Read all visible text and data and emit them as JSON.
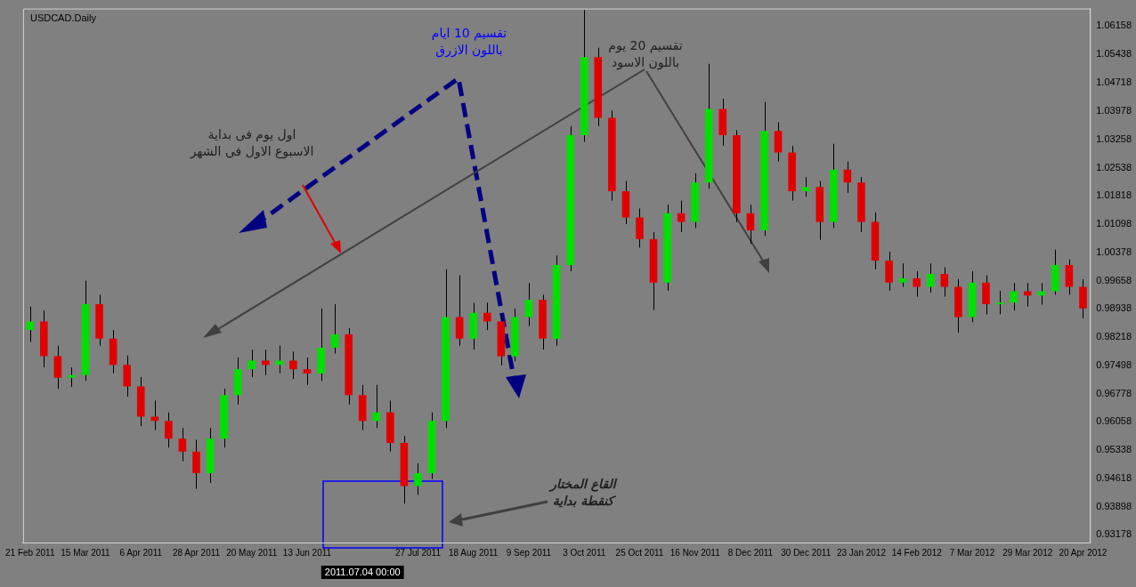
{
  "chart_data": {
    "type": "candlestick",
    "title": "USDCAD.Daily",
    "categories": [
      "21 Feb 2011",
      null,
      null,
      null,
      "15 Mar 2011",
      null,
      null,
      null,
      "6 Apr 2011",
      null,
      null,
      null,
      "28 Apr 2011",
      null,
      null,
      null,
      "20 May 2011",
      null,
      null,
      null,
      "13 Jun 2011",
      null,
      null,
      null,
      null,
      null,
      null,
      null,
      "27 Jul 2011",
      null,
      null,
      null,
      "18 Aug 2011",
      null,
      null,
      null,
      "9 Sep 2011",
      null,
      null,
      null,
      "3 Oct 2011",
      null,
      null,
      null,
      "25 Oct 2011",
      null,
      null,
      null,
      "16 Nov 2011",
      null,
      null,
      null,
      "8 Dec 2011",
      null,
      null,
      null,
      "30 Dec 2011",
      null,
      null,
      null,
      "23 Jan 2012",
      null,
      null,
      null,
      "14 Feb 2012",
      null,
      null,
      null,
      "7 Mar 2012",
      null,
      null,
      null,
      "29 Mar 2012",
      null,
      null,
      null,
      "20 Apr 2012"
    ],
    "ohlc": [
      [
        0.984,
        0.99,
        0.981,
        0.9862
      ],
      [
        0.9862,
        0.989,
        0.9745,
        0.9773
      ],
      [
        0.9773,
        0.98,
        0.969,
        0.9718
      ],
      [
        0.9718,
        0.9745,
        0.9695,
        0.9725
      ],
      [
        0.9725,
        0.9966,
        0.971,
        0.9906
      ],
      [
        0.9906,
        0.993,
        0.98,
        0.9818
      ],
      [
        0.9818,
        0.984,
        0.973,
        0.9751
      ],
      [
        0.9751,
        0.9775,
        0.967,
        0.9696
      ],
      [
        0.9696,
        0.972,
        0.9595,
        0.9619
      ],
      [
        0.9619,
        0.966,
        0.9585,
        0.9608
      ],
      [
        0.9608,
        0.963,
        0.954,
        0.9563
      ],
      [
        0.9563,
        0.959,
        0.9505,
        0.953
      ],
      [
        0.953,
        0.956,
        0.9435,
        0.9475
      ],
      [
        0.9475,
        0.959,
        0.945,
        0.9563
      ],
      [
        0.9563,
        0.969,
        0.954,
        0.9674
      ],
      [
        0.9674,
        0.977,
        0.965,
        0.974
      ],
      [
        0.974,
        0.979,
        0.972,
        0.9762
      ],
      [
        0.9762,
        0.979,
        0.9725,
        0.9751
      ],
      [
        0.9751,
        0.98,
        0.973,
        0.9762
      ],
      [
        0.9762,
        0.9785,
        0.9715,
        0.974
      ],
      [
        0.974,
        0.977,
        0.97,
        0.9729
      ],
      [
        0.9729,
        0.9895,
        0.971,
        0.9795
      ],
      [
        0.9795,
        0.9906,
        0.978,
        0.9829
      ],
      [
        0.9829,
        0.9845,
        0.965,
        0.9674
      ],
      [
        0.9674,
        0.97,
        0.9585,
        0.9608
      ],
      [
        0.9608,
        0.97,
        0.959,
        0.963
      ],
      [
        0.963,
        0.966,
        0.953,
        0.9552
      ],
      [
        0.9552,
        0.957,
        0.9397,
        0.9442
      ],
      [
        0.9442,
        0.95,
        0.942,
        0.9475
      ],
      [
        0.9475,
        0.963,
        0.946,
        0.9608
      ],
      [
        0.9608,
        0.9995,
        0.959,
        0.9873
      ],
      [
        0.9873,
        0.998,
        0.98,
        0.9818
      ],
      [
        0.9818,
        0.991,
        0.979,
        0.9884
      ],
      [
        0.9884,
        0.991,
        0.984,
        0.9862
      ],
      [
        0.9862,
        0.988,
        0.975,
        0.9773
      ],
      [
        0.9773,
        0.9895,
        0.976,
        0.9873
      ],
      [
        0.9873,
        0.996,
        0.985,
        0.9917
      ],
      [
        0.9917,
        0.993,
        0.979,
        0.9818
      ],
      [
        0.9818,
        1.003,
        0.98,
        1.0006
      ],
      [
        1.0006,
        1.036,
        0.999,
        1.0337
      ],
      [
        1.0337,
        1.0656,
        1.032,
        1.0536
      ],
      [
        1.0536,
        1.056,
        1.036,
        1.0381
      ],
      [
        1.0381,
        1.04,
        1.017,
        1.0194
      ],
      [
        1.0194,
        1.022,
        1.011,
        1.0127
      ],
      [
        1.0127,
        1.015,
        1.005,
        1.0072
      ],
      [
        1.0072,
        1.009,
        0.9891,
        0.9961
      ],
      [
        0.9961,
        1.016,
        0.994,
        1.0138
      ],
      [
        1.0138,
        1.017,
        1.009,
        1.0116
      ],
      [
        1.0116,
        1.024,
        1.01,
        1.0216
      ],
      [
        1.0216,
        1.0519,
        1.02,
        1.0404
      ],
      [
        1.0404,
        1.043,
        1.031,
        1.0337
      ],
      [
        1.0337,
        1.035,
        1.0115,
        1.0138
      ],
      [
        1.0138,
        1.016,
        1.006,
        1.0094
      ],
      [
        1.0094,
        1.0422,
        1.008,
        1.0348
      ],
      [
        1.0348,
        1.037,
        1.027,
        1.0293
      ],
      [
        1.0293,
        1.031,
        1.017,
        1.0194
      ],
      [
        1.0194,
        1.023,
        1.018,
        1.0205
      ],
      [
        1.0205,
        1.022,
        1.007,
        1.0116
      ],
      [
        1.0116,
        1.0315,
        1.01,
        1.0249
      ],
      [
        1.0249,
        1.027,
        1.019,
        1.0216
      ],
      [
        1.0216,
        1.023,
        1.009,
        1.0116
      ],
      [
        1.0116,
        1.014,
        0.9995,
        1.0017
      ],
      [
        1.0017,
        1.004,
        0.994,
        0.9961
      ],
      [
        0.9961,
        1.001,
        0.995,
        0.9972
      ],
      [
        0.9972,
        0.999,
        0.9925,
        0.995
      ],
      [
        0.995,
        1.001,
        0.9935,
        0.9983
      ],
      [
        0.9983,
        1.0,
        0.9925,
        0.995
      ],
      [
        0.995,
        0.997,
        0.9833,
        0.9873
      ],
      [
        0.9873,
        0.999,
        0.986,
        0.9961
      ],
      [
        0.9961,
        0.998,
        0.988,
        0.9906
      ],
      [
        0.9906,
        0.994,
        0.988,
        0.991
      ],
      [
        0.991,
        0.996,
        0.989,
        0.9939
      ],
      [
        0.9939,
        0.996,
        0.99,
        0.9928
      ],
      [
        0.9928,
        0.996,
        0.9905,
        0.9939
      ],
      [
        0.9939,
        1.0045,
        0.993,
        1.0006
      ],
      [
        1.0006,
        1.002,
        0.993,
        0.995
      ],
      [
        0.995,
        0.997,
        0.987,
        0.9895
      ]
    ],
    "ylim": [
      0.9298,
      1.066
    ],
    "yticks": [
      0.93178,
      0.93898,
      0.94618,
      0.95338,
      0.96058,
      0.96778,
      0.97498,
      0.98218,
      0.98938,
      0.99658,
      1.00378,
      1.01098,
      1.01818,
      1.02538,
      1.03258,
      1.03978,
      1.04718,
      1.05438,
      1.06158
    ],
    "annotations": [
      "تقسيم 10 ايام باللون الازرق",
      "تقسيم 20 يوم باللون الاسود",
      "اول يوم فى بداية الاسبوع الاول فى الشهر",
      "القاع المختار كنقطة بداية",
      "2011.07.04 00:00"
    ]
  }
}
